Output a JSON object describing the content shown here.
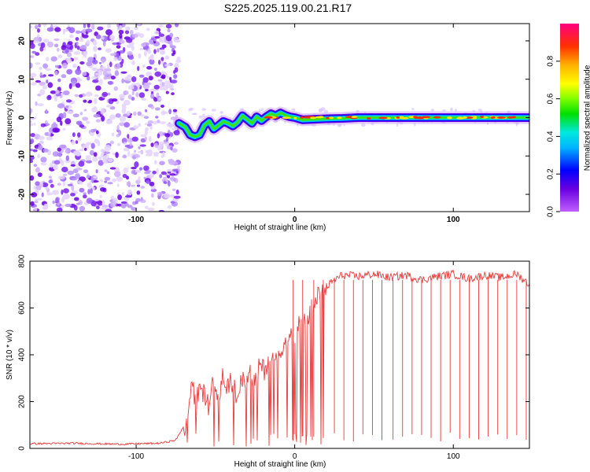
{
  "chart_data": [
    {
      "type": "heatmap",
      "title": "S225.2025.119.00.21.R17",
      "xlabel": "Height of straight line (km)",
      "ylabel": "Frequency (Hz)",
      "xlim": [
        -167,
        148
      ],
      "ylim": [
        -24.5,
        24.5
      ],
      "x_ticks": [
        -100,
        0,
        100
      ],
      "y_ticks": [
        -20,
        -10,
        0,
        10,
        20
      ],
      "noise_region_x": [
        -167,
        -73
      ],
      "track": {
        "x": [
          -73,
          -69,
          -66,
          -63,
          -60,
          -57,
          -54,
          -51,
          -48,
          -45,
          -42,
          -39,
          -36,
          -33,
          -30,
          -27,
          -24,
          -21,
          -18,
          -15,
          -12,
          -9,
          -6,
          -3,
          0,
          5,
          10,
          20,
          30,
          40,
          60,
          80,
          100,
          120,
          148
        ],
        "freq": [
          -1.5,
          -2.5,
          -4.5,
          -5.0,
          -4.5,
          -2.0,
          -1.0,
          -3.0,
          -2.0,
          -1.0,
          -1.5,
          -2.2,
          -1.2,
          0.5,
          -0.5,
          -1.5,
          0.2,
          -0.8,
          0.2,
          1.0,
          0.5,
          1.2,
          0.6,
          0.2,
          0.0,
          -0.6,
          -0.5,
          -0.3,
          -0.2,
          0.0,
          0.0,
          0.0,
          0.0,
          0.0,
          0.0
        ]
      },
      "colorbar": {
        "label": "Normalized spectral amplitude",
        "ticks": [
          "0.0",
          "0.2",
          "0.4",
          "0.6",
          "0.8"
        ],
        "tick_values": [
          0.0,
          0.2,
          0.4,
          0.6,
          0.8
        ],
        "range": [
          0.0,
          1.0
        ]
      }
    },
    {
      "type": "line",
      "xlabel": "Height of straight line (km)",
      "ylabel": "SNR (10 * v/v)",
      "xlim": [
        -167,
        148
      ],
      "ylim": [
        0,
        800
      ],
      "x_ticks": [
        -100,
        0,
        100
      ],
      "y_ticks": [
        0,
        200,
        400,
        600,
        800
      ],
      "line_color": "#e8393a",
      "series": [
        {
          "name": "SNR",
          "x": [
            -167,
            -140,
            -110,
            -85,
            -75,
            -68,
            -66,
            -64,
            -62,
            -60,
            -57,
            -54,
            -51,
            -48,
            -45,
            -43,
            -40,
            -37,
            -34,
            -31,
            -28,
            -25,
            -22,
            -19,
            -16,
            -13,
            -10,
            -7,
            -4,
            -1,
            2,
            5,
            8,
            11,
            14,
            17,
            20,
            25,
            30,
            40,
            50,
            60,
            70,
            80,
            90,
            100,
            110,
            120,
            130,
            140,
            148
          ],
          "values": [
            20,
            22,
            18,
            22,
            35,
            120,
            230,
            250,
            200,
            260,
            230,
            180,
            300,
            200,
            330,
            240,
            290,
            230,
            300,
            270,
            320,
            290,
            360,
            330,
            400,
            380,
            440,
            420,
            480,
            470,
            520,
            540,
            560,
            600,
            640,
            670,
            690,
            720,
            740,
            735,
            745,
            730,
            740,
            720,
            735,
            745,
            725,
            740,
            730,
            745,
            700
          ]
        }
      ],
      "dropout_x": [
        -1,
        5,
        12,
        18,
        25,
        31,
        37,
        43,
        49,
        55,
        62,
        68,
        74,
        80,
        86,
        92,
        98,
        104,
        110,
        116,
        122,
        128,
        134,
        140,
        146
      ]
    }
  ]
}
